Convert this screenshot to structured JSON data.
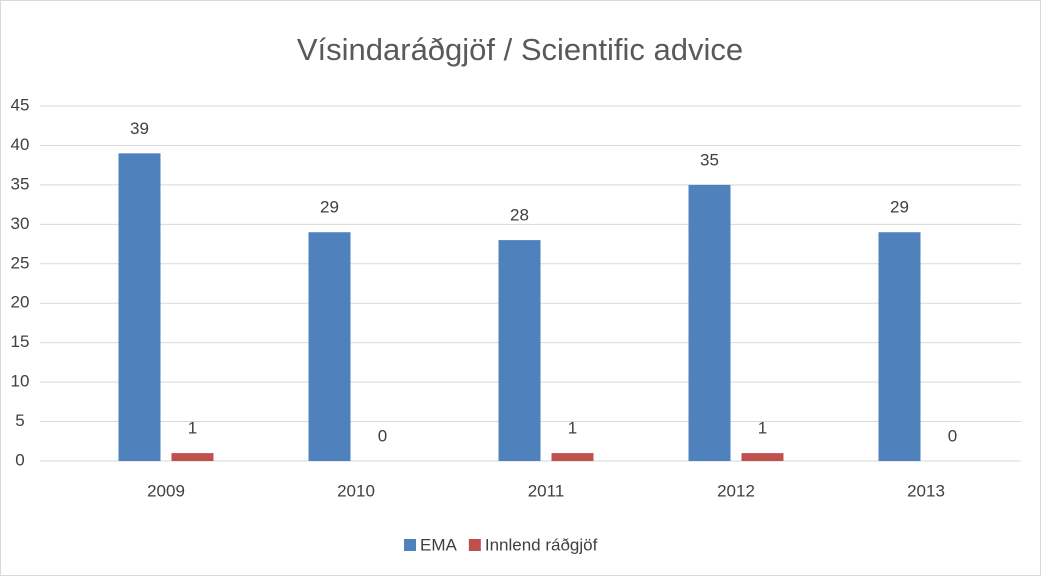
{
  "chart_data": {
    "type": "bar",
    "title": "Vísindaráðgjöf / Scientific advice",
    "categories": [
      "2009",
      "2010",
      "2011",
      "2012",
      "2013"
    ],
    "series": [
      {
        "name": "EMA",
        "color": "#4f81bd",
        "values": [
          39,
          29,
          28,
          35,
          29
        ]
      },
      {
        "name": "Innlend ráðgjöf",
        "color": "#c0504d",
        "values": [
          1,
          0,
          1,
          1,
          0
        ]
      }
    ],
    "ylim": [
      0,
      45
    ],
    "yticks": [
      0,
      5,
      10,
      15,
      20,
      25,
      30,
      35,
      40,
      45
    ],
    "grid": true,
    "legend": "bottom"
  }
}
